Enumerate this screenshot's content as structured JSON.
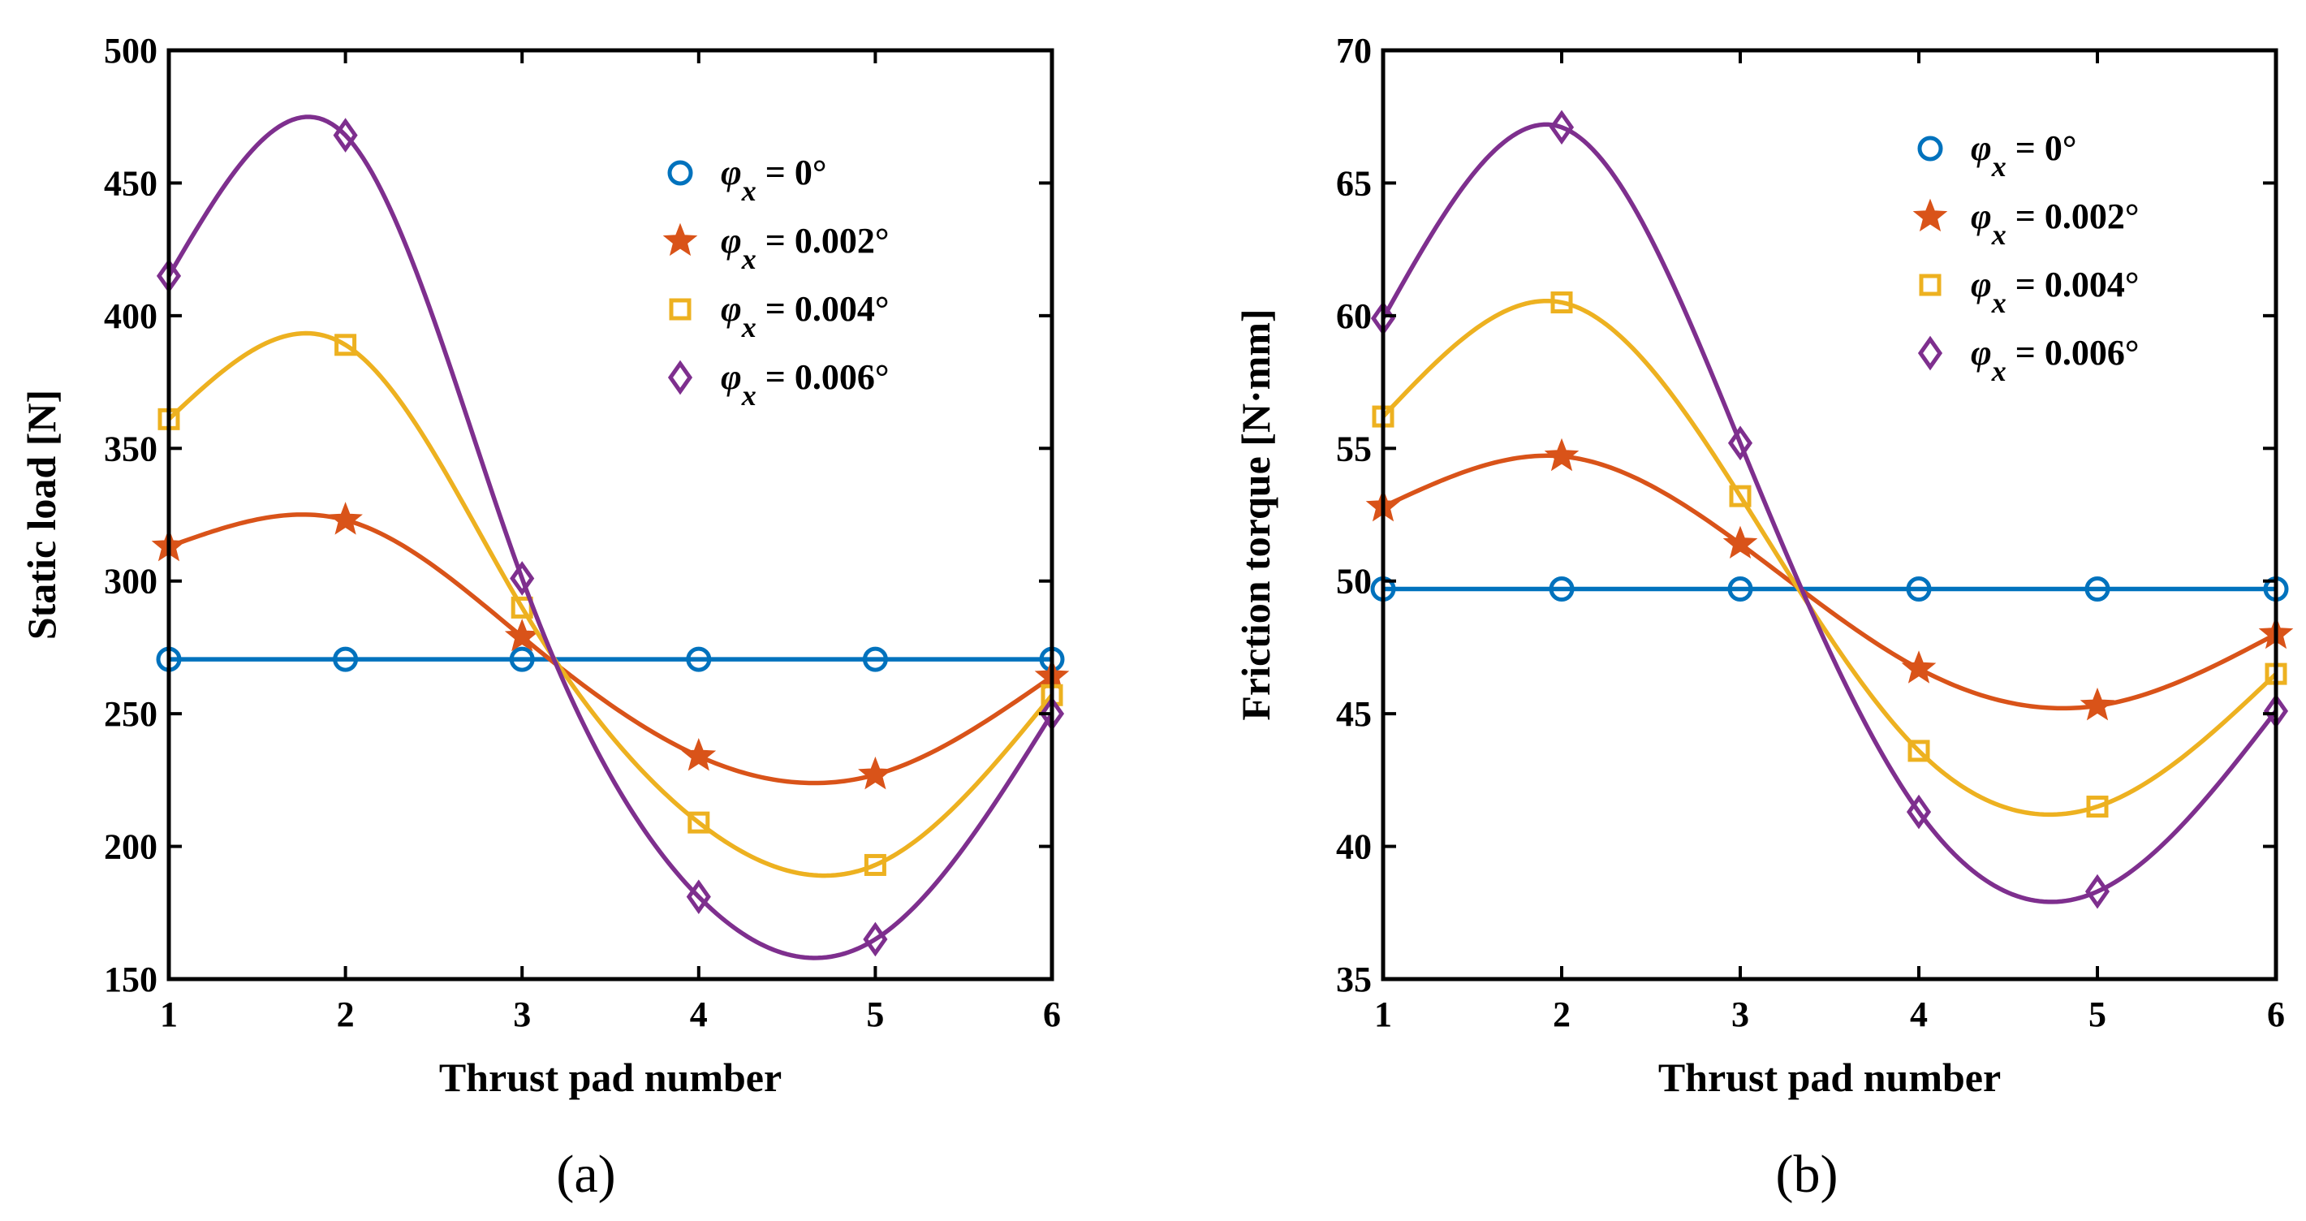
{
  "chart_data": [
    {
      "type": "line",
      "panel_label": "(a)",
      "title": "",
      "xlabel": "Thrust pad number",
      "ylabel": "Static load [N]",
      "xlim": [
        1,
        6
      ],
      "ylim": [
        150,
        500
      ],
      "xticks": [
        1,
        2,
        3,
        4,
        5,
        6
      ],
      "yticks": [
        150,
        200,
        250,
        300,
        350,
        400,
        450,
        500
      ],
      "x": [
        1,
        2,
        3,
        4,
        5,
        6
      ],
      "legend_position": "top-right",
      "series": [
        {
          "name": "φx = 0°",
          "label_main": "φ",
          "label_sub": "x",
          "label_rest": " = 0°",
          "color": "#0072BD",
          "marker": "circle",
          "values": [
            270.5,
            270.5,
            270.5,
            270.5,
            270.5,
            270.5
          ]
        },
        {
          "name": "φx = 0.002°",
          "label_main": "φ",
          "label_sub": "x",
          "label_rest": " = 0.002°",
          "color": "#D95319",
          "marker": "star",
          "values": [
            313,
            323,
            279,
            234,
            227,
            264
          ]
        },
        {
          "name": "φx = 0.004°",
          "label_main": "φ",
          "label_sub": "x",
          "label_rest": " = 0.004°",
          "color": "#EDB120",
          "marker": "square",
          "values": [
            361,
            389,
            290,
            209,
            193,
            257
          ]
        },
        {
          "name": "φx = 0.006°",
          "label_main": "φ",
          "label_sub": "x",
          "label_rest": " = 0.006°",
          "color": "#7E2F8E",
          "marker": "diamond",
          "values": [
            415,
            468,
            301,
            181,
            165,
            250
          ]
        }
      ]
    },
    {
      "type": "line",
      "panel_label": "(b)",
      "title": "",
      "xlabel": "Thrust pad number",
      "ylabel": "Friction torque [N·mm]",
      "xlim": [
        1,
        6
      ],
      "ylim": [
        35,
        70
      ],
      "xticks": [
        1,
        2,
        3,
        4,
        5,
        6
      ],
      "yticks": [
        35,
        40,
        45,
        50,
        55,
        60,
        65,
        70
      ],
      "x": [
        1,
        2,
        3,
        4,
        5,
        6
      ],
      "legend_position": "top-right",
      "series": [
        {
          "name": "φx = 0°",
          "label_main": "φ",
          "label_sub": "x",
          "label_rest": " = 0°",
          "color": "#0072BD",
          "marker": "circle",
          "values": [
            49.7,
            49.7,
            49.7,
            49.7,
            49.7,
            49.7
          ]
        },
        {
          "name": "φx = 0.002°",
          "label_main": "φ",
          "label_sub": "x",
          "label_rest": " = 0.002°",
          "color": "#D95319",
          "marker": "star",
          "values": [
            52.8,
            54.7,
            51.4,
            46.7,
            45.3,
            48.0
          ]
        },
        {
          "name": "φx = 0.004°",
          "label_main": "φ",
          "label_sub": "x",
          "label_rest": " = 0.004°",
          "color": "#EDB120",
          "marker": "square",
          "values": [
            56.2,
            60.5,
            53.2,
            43.6,
            41.5,
            46.5
          ]
        },
        {
          "name": "φx = 0.006°",
          "label_main": "φ",
          "label_sub": "x",
          "label_rest": " = 0.006°",
          "color": "#7E2F8E",
          "marker": "diamond",
          "values": [
            59.9,
            67.1,
            55.2,
            41.3,
            38.3,
            45.1
          ]
        }
      ]
    }
  ]
}
